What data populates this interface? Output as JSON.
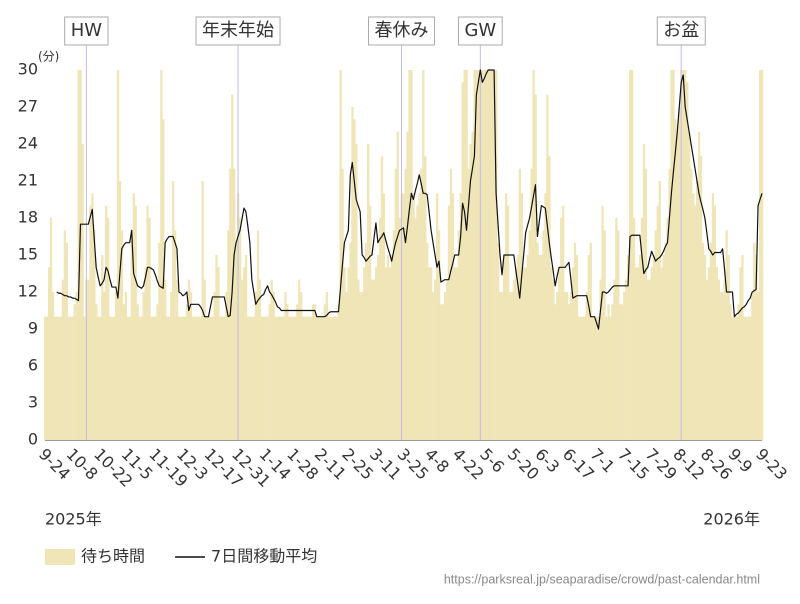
{
  "chart_data": {
    "type": "combo",
    "y_unit": "(分)",
    "categories": [
      "9-24",
      "9-25",
      "9-26",
      "9-27",
      "9-28",
      "9-29",
      "9-30",
      "10-1",
      "10-2",
      "10-3",
      "10-4",
      "10-5",
      "10-6",
      "10-7",
      "10-8",
      "10-9",
      "10-10",
      "10-11",
      "10-12",
      "10-13",
      "10-14",
      "10-15",
      "10-16",
      "10-17",
      "10-18",
      "10-19",
      "10-20",
      "10-21",
      "10-22",
      "10-23",
      "10-24",
      "10-25",
      "10-26",
      "10-27",
      "10-28",
      "10-29",
      "10-30",
      "10-31",
      "11-1",
      "11-2",
      "11-3",
      "11-4",
      "11-5",
      "11-6",
      "11-7",
      "11-8",
      "11-9",
      "11-10",
      "11-11",
      "11-12",
      "11-13",
      "11-14",
      "11-15",
      "11-16",
      "11-17",
      "11-18",
      "11-19",
      "11-20",
      "11-21",
      "11-22",
      "11-23",
      "11-24",
      "11-25",
      "11-26",
      "11-27",
      "11-28",
      "11-29",
      "11-30",
      "12-1",
      "12-2",
      "12-3",
      "12-4",
      "12-5",
      "12-6",
      "12-7",
      "12-8",
      "12-9",
      "12-10",
      "12-11",
      "12-12",
      "12-13",
      "12-14",
      "12-15",
      "12-16",
      "12-17",
      "12-18",
      "12-19",
      "12-20",
      "12-21",
      "12-22",
      "12-23",
      "12-24",
      "12-25",
      "12-26",
      "12-27",
      "12-28",
      "12-29",
      "12-30",
      "12-31",
      "1-1",
      "1-2",
      "1-3",
      "1-4",
      "1-5",
      "1-6",
      "1-7",
      "1-8",
      "1-9",
      "1-10",
      "1-11",
      "1-12",
      "1-13",
      "1-14",
      "1-15",
      "1-16",
      "1-17",
      "1-18",
      "1-19",
      "1-20",
      "1-21",
      "1-22",
      "1-23",
      "1-24",
      "1-25",
      "1-26",
      "1-27",
      "1-28",
      "1-29",
      "1-30",
      "1-31",
      "2-1",
      "2-2",
      "2-3",
      "2-4",
      "2-5",
      "2-6",
      "2-7",
      "2-8",
      "2-9",
      "2-10",
      "2-11",
      "2-12",
      "2-13",
      "2-14",
      "2-15",
      "2-16",
      "2-17",
      "2-18",
      "2-19",
      "2-20",
      "2-21",
      "2-22",
      "2-23",
      "2-24",
      "2-25",
      "2-26",
      "2-27",
      "2-28",
      "3-1",
      "3-2",
      "3-3",
      "3-4",
      "3-5",
      "3-6",
      "3-7",
      "3-8",
      "3-9",
      "3-10",
      "3-11",
      "3-12",
      "3-13",
      "3-14",
      "3-15",
      "3-16",
      "3-17",
      "3-18",
      "3-19",
      "3-20",
      "3-21",
      "3-22",
      "3-23",
      "3-24",
      "3-25",
      "3-26",
      "3-27",
      "3-28",
      "3-29",
      "3-30",
      "3-31",
      "4-1",
      "4-2",
      "4-3",
      "4-4",
      "4-5",
      "4-6",
      "4-7",
      "4-8",
      "4-9",
      "4-10",
      "4-11",
      "4-12",
      "4-13",
      "4-14",
      "4-15",
      "4-16",
      "4-17",
      "4-18",
      "4-19",
      "4-20",
      "4-21",
      "4-22",
      "4-23",
      "4-24",
      "4-25",
      "4-26",
      "4-27",
      "4-28",
      "4-29",
      "4-30",
      "5-1",
      "5-2",
      "5-3",
      "5-4",
      "5-5",
      "5-6",
      "5-7",
      "5-8",
      "5-9",
      "5-10",
      "5-11",
      "5-12",
      "5-13",
      "5-14",
      "5-15",
      "5-16",
      "5-17",
      "5-18",
      "5-19",
      "5-20",
      "5-21",
      "5-22",
      "5-23",
      "5-24",
      "5-25",
      "5-26",
      "5-27",
      "5-28",
      "5-29",
      "5-30",
      "5-31",
      "6-1",
      "6-2",
      "6-3",
      "6-4",
      "6-5",
      "6-6",
      "6-7",
      "6-8",
      "6-9",
      "6-10",
      "6-11",
      "6-12",
      "6-13",
      "6-14",
      "6-15",
      "6-16",
      "6-17",
      "6-18",
      "6-19",
      "6-20",
      "6-21",
      "6-22",
      "6-23",
      "6-24",
      "6-25",
      "6-26",
      "6-27",
      "6-28",
      "6-29",
      "6-30",
      "7-1",
      "7-2",
      "7-3",
      "7-4",
      "7-5",
      "7-6",
      "7-7",
      "7-8",
      "7-9",
      "7-10",
      "7-11",
      "7-12",
      "7-13",
      "7-14",
      "7-15",
      "7-16",
      "7-17",
      "7-18",
      "7-19",
      "7-20",
      "7-21",
      "7-22",
      "7-23",
      "7-24",
      "7-25",
      "7-26",
      "7-27",
      "7-28",
      "7-29",
      "7-30",
      "7-31",
      "8-1",
      "8-2",
      "8-3",
      "8-4",
      "8-5",
      "8-6",
      "8-7",
      "8-8",
      "8-9",
      "8-10",
      "8-11",
      "8-12",
      "8-13",
      "8-14",
      "8-15",
      "8-16",
      "8-17",
      "8-18",
      "8-19",
      "8-20",
      "8-21",
      "8-22",
      "8-23",
      "8-24",
      "8-25",
      "8-26",
      "8-27",
      "8-28",
      "8-29",
      "8-30",
      "8-31",
      "9-1",
      "9-2",
      "9-3",
      "9-4",
      "9-5",
      "9-6",
      "9-7",
      "9-8",
      "9-9",
      "9-10",
      "9-11",
      "9-12",
      "9-13",
      "9-14",
      "9-15",
      "9-16",
      "9-17",
      "9-18",
      "9-19",
      "9-20",
      "9-21",
      "9-22",
      "9-23"
    ],
    "xticks": [
      "9-24",
      "10-8",
      "10-22",
      "11-5",
      "11-19",
      "12-3",
      "12-17",
      "12-31",
      "1-14",
      "1-28",
      "2-11",
      "2-25",
      "3-11",
      "3-25",
      "4-8",
      "4-22",
      "5-6",
      "5-20",
      "6-3",
      "6-17",
      "7-1",
      "7-15",
      "7-29",
      "8-12",
      "8-26",
      "9-9",
      "9-23"
    ],
    "year_labels": [
      "2025年",
      "2026年"
    ],
    "ylim": [
      0,
      30
    ],
    "yticks": [
      0,
      3,
      6,
      9,
      12,
      15,
      18,
      21,
      24,
      27,
      30
    ],
    "legend": "bottom-left",
    "annotations": [
      {
        "label": "HW",
        "x": "10-15"
      },
      {
        "label": "年末年始",
        "x": "12-31"
      },
      {
        "label": "春休み",
        "x": "3-24"
      },
      {
        "label": "GW",
        "x": "5-3"
      },
      {
        "label": "お盆",
        "x": "8-13"
      }
    ],
    "series": [
      {
        "name": "待ち時間",
        "type": "bar",
        "color": "#efe5b6",
        "values": [
          10,
          10,
          14,
          18,
          12,
          10,
          10,
          10,
          10,
          13,
          17,
          16,
          10,
          10,
          10,
          11,
          12,
          30,
          30,
          24,
          10,
          13,
          13,
          19,
          20,
          17,
          11,
          10,
          10,
          15,
          12,
          19,
          18,
          10,
          10,
          10,
          12,
          30,
          21,
          17,
          11,
          12,
          10,
          10,
          17,
          20,
          19,
          11,
          10,
          10,
          12,
          14,
          19,
          18,
          10,
          10,
          10,
          11,
          16,
          30,
          26,
          13,
          10,
          10,
          12,
          21,
          17,
          13,
          10,
          10,
          10,
          10,
          11,
          13,
          12,
          10,
          10,
          10,
          10,
          10,
          21,
          13,
          10,
          10,
          10,
          10,
          12,
          15,
          14,
          10,
          10,
          10,
          12,
          17,
          22,
          28,
          22,
          16,
          20,
          18,
          13,
          14,
          15,
          10,
          10,
          10,
          10,
          12,
          17,
          13,
          10,
          10,
          10,
          10,
          11,
          13,
          12,
          10,
          10,
          10,
          10,
          10,
          12,
          11,
          10,
          10,
          10,
          10,
          11,
          13,
          12,
          10,
          10,
          10,
          10,
          10,
          11,
          11,
          10,
          10,
          10,
          10,
          11,
          12,
          10,
          10,
          10,
          10,
          10,
          11,
          30,
          22,
          14,
          12,
          14,
          16,
          27,
          26,
          24,
          13,
          12,
          12,
          14,
          16,
          24,
          19,
          13,
          13,
          14,
          15,
          18,
          23,
          20,
          14,
          15,
          14,
          15,
          17,
          22,
          25,
          18,
          20,
          20,
          22,
          25,
          30,
          30,
          20,
          18,
          19,
          20,
          22,
          30,
          23,
          16,
          14,
          14,
          12,
          13,
          20,
          17,
          11,
          11,
          12,
          13,
          19,
          22,
          20,
          14,
          14,
          17,
          20,
          29,
          30,
          30,
          22,
          24,
          25,
          30,
          30,
          30,
          30,
          30,
          30,
          30,
          30,
          30,
          30,
          30,
          30,
          16,
          12,
          12,
          15,
          20,
          19,
          12,
          12,
          13,
          14,
          15,
          22,
          20,
          14,
          14,
          15,
          17,
          22,
          30,
          28,
          16,
          15,
          15,
          17,
          20,
          28,
          23,
          14,
          13,
          11,
          12,
          14,
          18,
          19,
          12,
          12,
          11,
          12,
          14,
          16,
          15,
          10,
          10,
          10,
          10,
          12,
          15,
          16,
          10,
          10,
          10,
          10,
          13,
          19,
          17,
          10,
          11,
          10,
          11,
          13,
          18,
          17,
          11,
          11,
          12,
          13,
          15,
          30,
          30,
          18,
          14,
          14,
          15,
          18,
          24,
          22,
          13,
          13,
          14,
          15,
          17,
          19,
          21,
          14,
          15,
          16,
          18,
          22,
          30,
          30,
          26,
          25,
          27,
          30,
          30,
          30,
          29,
          25,
          22,
          20,
          19,
          21,
          25,
          23,
          16,
          15,
          13,
          14,
          16,
          20,
          19,
          14,
          13,
          12,
          12,
          13,
          17,
          15,
          11,
          10,
          10,
          10,
          11,
          14,
          15,
          10,
          10,
          10,
          10,
          12,
          16,
          15,
          12,
          30,
          30
        ]
      },
      {
        "name": "7日間移動平均",
        "type": "line",
        "color": "#111111",
        "values": [
          null,
          null,
          null,
          null,
          null,
          null,
          12,
          11.9,
          11.9,
          11.8,
          11.7,
          11.7,
          11.6,
          11.6,
          11.5,
          11.5,
          11.4,
          11.3,
          17.5,
          17.5,
          17.5,
          17.5,
          17.5,
          18.1,
          18.7,
          16.3,
          14,
          13.2,
          12.5,
          12.7,
          13,
          14,
          13.7,
          13,
          12.4,
          12.4,
          12.4,
          11.5,
          13.5,
          15.5,
          15.8,
          16,
          16,
          16,
          17,
          13.5,
          13,
          12.5,
          12.4,
          12.3,
          12.5,
          13.2,
          14,
          14,
          13.9,
          13.8,
          13.4,
          12.9,
          12.5,
          12.4,
          12.3,
          16,
          16.3,
          16.5,
          16.5,
          16.5,
          16,
          15.5,
          12,
          11.9,
          11.7,
          11.8,
          12,
          10.5,
          11,
          11,
          11,
          11,
          11,
          10.8,
          10.5,
          10,
          10,
          10,
          10.8,
          11.6,
          11.6,
          11.6,
          11.6,
          11.6,
          11.6,
          11.6,
          10.8,
          10,
          10.1,
          12,
          15,
          16,
          16.5,
          17,
          17.9,
          18.8,
          18.5,
          17.3,
          16,
          13,
          12,
          11,
          11.3,
          11.5,
          11.7,
          11.8,
          12.2,
          12.5,
          12,
          11.8,
          11.5,
          11.2,
          10.8,
          10.7,
          10.5,
          10.5,
          10.5,
          10.5,
          10.5,
          10.5,
          10.5,
          10.5,
          10.5,
          10.5,
          10.5,
          10.5,
          10.5,
          10.5,
          10.5,
          10.5,
          10.5,
          10.5,
          10,
          10,
          10,
          10,
          10,
          10.1,
          10.3,
          10.4,
          10.4,
          10.4,
          10.4,
          10.4,
          12.3,
          14.2,
          16,
          16.5,
          17,
          21.5,
          22.5,
          21,
          19.5,
          19,
          18.5,
          15,
          14.8,
          14.5,
          14.7,
          14.9,
          15,
          16.3,
          17.6,
          16,
          16.3,
          16.5,
          16.8,
          16.2,
          15.6,
          15.1,
          14.5,
          15.3,
          16,
          16.5,
          17,
          17.1,
          17.2,
          16,
          17.3,
          18.7,
          20,
          19.5,
          20.2,
          20.8,
          21.5,
          20.8,
          20,
          20,
          19.9,
          18.5,
          17,
          16,
          15,
          14,
          14.5,
          12.8,
          12.9,
          13,
          13,
          13,
          13.7,
          14.3,
          15,
          15,
          15,
          16.5,
          19.2,
          18.5,
          17,
          19,
          21,
          22,
          23,
          28,
          29,
          30,
          29,
          29.3,
          29.7,
          30,
          30,
          30,
          30,
          20,
          17.5,
          15,
          13.4,
          15,
          15,
          15,
          15,
          15,
          15,
          13.8,
          12.7,
          11.5,
          13.3,
          15,
          16.8,
          17.4,
          18,
          18.9,
          19.8,
          20.7,
          16.5,
          17.8,
          19,
          18.9,
          18.8,
          17.4,
          16,
          14.8,
          13.7,
          12.5,
          13.3,
          14,
          14,
          14,
          14,
          14.2,
          14.4,
          13,
          11.5,
          11.6,
          11.7,
          11.7,
          11.7,
          11.7,
          11.7,
          11.7,
          10.9,
          10,
          10,
          10,
          9.5,
          9,
          10.5,
          12,
          12,
          11.9,
          12,
          12.2,
          12.4,
          12.5,
          12.5,
          12.5,
          12.5,
          12.5,
          12.5,
          12.5,
          12.5,
          16.5,
          16.6,
          16.6,
          16.6,
          16.6,
          16.6,
          15,
          13.5,
          13.8,
          14,
          14.7,
          15.3,
          14.9,
          14.5,
          14.7,
          14.8,
          15,
          15.3,
          15.7,
          16,
          18,
          20,
          21.7,
          23.3,
          25,
          27,
          29,
          29.6,
          27,
          26,
          25,
          24,
          23,
          22,
          21,
          20,
          19.3,
          18.7,
          18,
          16.8,
          15.5,
          15.3,
          15,
          15.2,
          15.2,
          15.2,
          15.2,
          15.5,
          13.8,
          12,
          12,
          12,
          12,
          10,
          10.2,
          10.3,
          10.5,
          10.7,
          10.8,
          11,
          11.3,
          11.5,
          12,
          12.1,
          12.2,
          19,
          19.5,
          20
        ]
      }
    ],
    "source": "https://parksreal.jp/seaparadise/crowd/past-calendar.html"
  }
}
